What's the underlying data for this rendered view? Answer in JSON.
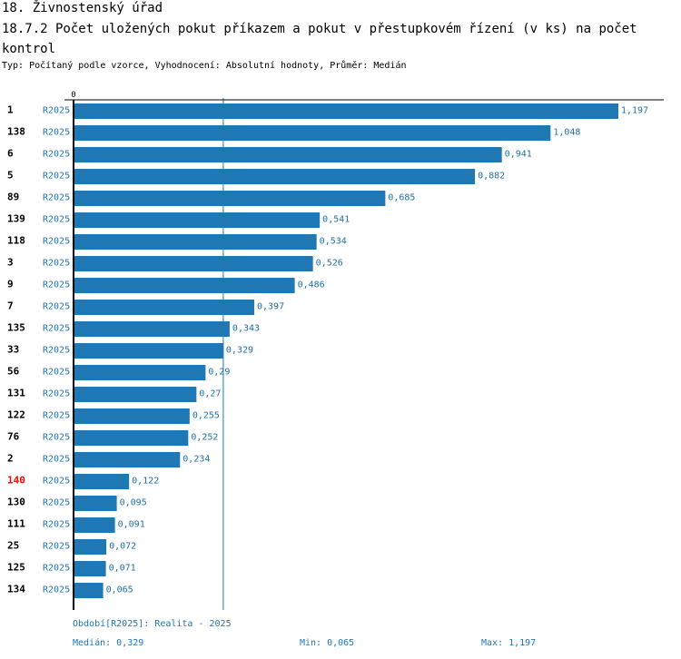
{
  "header": {
    "title": "18. Živnostenský úřad",
    "subtitle": "18.7.2 Počet uložených pokut příkazem a pokut v přestupkovém řízení (v ks) na počet kontrol",
    "meta": "Typ: Počítaný podle vzorce, Vyhodnocení: Absolutní hodnoty, Průměr: Medián"
  },
  "chart_data": {
    "type": "bar",
    "orientation": "horizontal",
    "series_name": "R2025",
    "categories": [
      "1",
      "138",
      "6",
      "5",
      "89",
      "139",
      "118",
      "3",
      "9",
      "7",
      "135",
      "33",
      "56",
      "131",
      "122",
      "76",
      "2",
      "140",
      "130",
      "111",
      "25",
      "125",
      "134"
    ],
    "values": [
      1.197,
      1.048,
      0.941,
      0.882,
      0.685,
      0.541,
      0.534,
      0.526,
      0.486,
      0.397,
      0.343,
      0.329,
      0.29,
      0.27,
      0.255,
      0.252,
      0.234,
      0.122,
      0.095,
      0.091,
      0.072,
      0.071,
      0.065
    ],
    "value_labels": [
      "1,197",
      "1,048",
      "0,941",
      "0,882",
      "0,685",
      "0,541",
      "0,534",
      "0,526",
      "0,486",
      "0,397",
      "0,343",
      "0,329",
      "0,29",
      "0,27",
      "0,255",
      "0,252",
      "0,234",
      "0,122",
      "0,095",
      "0,091",
      "0,072",
      "0,071",
      "0,065"
    ],
    "highlight_category": "140",
    "x_tick": "0",
    "xlim": [
      0,
      1.197
    ],
    "median": 0.329
  },
  "colors": {
    "bar": "#1f77b4",
    "highlight_label": "#ff0000",
    "median_line": "#1f77b4"
  },
  "footer": {
    "period": "Období[R2025]: Realita - 2025",
    "median": "Medián: 0,329",
    "min": "Min: 0,065",
    "max": "Max: 1,197"
  }
}
